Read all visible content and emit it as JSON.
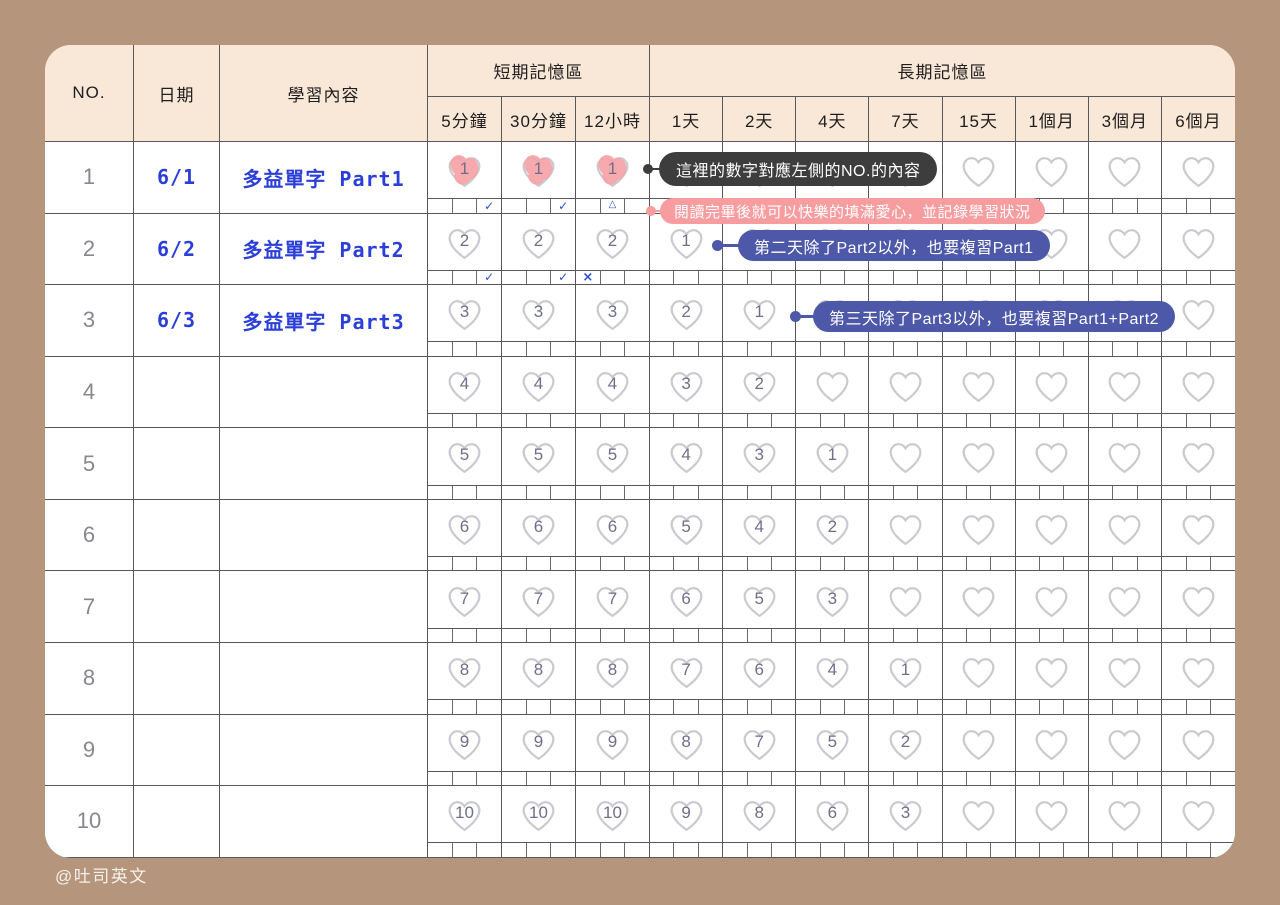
{
  "colors": {
    "background_tan": "#b6957d",
    "header_peach": "#f9e7d7",
    "handwriting_blue": "#2b3fd8",
    "mark_blue": "#2f4ecf",
    "heart_fill_pink": "#f7a3a7",
    "tooltip_dark": "#3d3d3d",
    "tooltip_pink": "#f79da0",
    "tooltip_indigo": "#4d58a9"
  },
  "table": {
    "headers": {
      "no": "NO.",
      "date": "日期",
      "content": "學習內容",
      "short_term_group": "短期記憶區",
      "long_term_group": "長期記憶區",
      "short_cols": [
        "5分鐘",
        "30分鐘",
        "12小時"
      ],
      "long_cols": [
        "1天",
        "2天",
        "4天",
        "7天",
        "15天",
        "1個月",
        "3個月",
        "6個月"
      ]
    },
    "rows": [
      {
        "no": "1",
        "date": "6/1",
        "content": "多益單字 Part1",
        "hearts": [
          "1",
          "1",
          "1",
          "",
          "",
          "",
          "",
          "",
          "",
          "",
          ""
        ],
        "filled": [
          0,
          1,
          2
        ],
        "marks": [
          [
            "",
            "",
            "✓"
          ],
          [
            "",
            "",
            "✓"
          ],
          [
            "",
            "△",
            ""
          ]
        ]
      },
      {
        "no": "2",
        "date": "6/2",
        "content": "多益單字 Part2",
        "hearts": [
          "2",
          "2",
          "2",
          "1",
          "",
          "",
          "",
          "",
          "",
          "",
          ""
        ],
        "filled": [],
        "marks": [
          [
            "",
            "",
            "✓"
          ],
          [
            "",
            "",
            "✓"
          ],
          [
            "×",
            "",
            ""
          ]
        ]
      },
      {
        "no": "3",
        "date": "6/3",
        "content": "多益單字 Part3",
        "hearts": [
          "3",
          "3",
          "3",
          "2",
          "1",
          "",
          "",
          "",
          "",
          "",
          ""
        ],
        "filled": [],
        "marks": []
      },
      {
        "no": "4",
        "date": "",
        "content": "",
        "hearts": [
          "4",
          "4",
          "4",
          "3",
          "2",
          "",
          "",
          "",
          "",
          "",
          ""
        ],
        "filled": [],
        "marks": []
      },
      {
        "no": "5",
        "date": "",
        "content": "",
        "hearts": [
          "5",
          "5",
          "5",
          "4",
          "3",
          "1",
          "",
          "",
          "",
          "",
          ""
        ],
        "filled": [],
        "marks": []
      },
      {
        "no": "6",
        "date": "",
        "content": "",
        "hearts": [
          "6",
          "6",
          "6",
          "5",
          "4",
          "2",
          "",
          "",
          "",
          "",
          ""
        ],
        "filled": [],
        "marks": []
      },
      {
        "no": "7",
        "date": "",
        "content": "",
        "hearts": [
          "7",
          "7",
          "7",
          "6",
          "5",
          "3",
          "",
          "",
          "",
          "",
          ""
        ],
        "filled": [],
        "marks": []
      },
      {
        "no": "8",
        "date": "",
        "content": "",
        "hearts": [
          "8",
          "8",
          "8",
          "7",
          "6",
          "4",
          "1",
          "",
          "",
          "",
          ""
        ],
        "filled": [],
        "marks": []
      },
      {
        "no": "9",
        "date": "",
        "content": "",
        "hearts": [
          "9",
          "9",
          "9",
          "8",
          "7",
          "5",
          "2",
          "",
          "",
          "",
          ""
        ],
        "filled": [],
        "marks": []
      },
      {
        "no": "10",
        "date": "",
        "content": "",
        "hearts": [
          "10",
          "10",
          "10",
          "9",
          "8",
          "6",
          "3",
          "",
          "",
          "",
          ""
        ],
        "filled": [],
        "marks": []
      }
    ]
  },
  "tooltips": {
    "dark": {
      "text": "這裡的數字對應左側的NO.的內容"
    },
    "pink": {
      "text": "閱讀完畢後就可以快樂的填滿愛心，並記錄學習狀況"
    },
    "blue1": {
      "text": "第二天除了Part2以外，也要複習Part1"
    },
    "blue2": {
      "text": "第三天除了Part3以外，也要複習Part1+Part2"
    }
  },
  "footer": {
    "brand": "@吐司英文"
  }
}
